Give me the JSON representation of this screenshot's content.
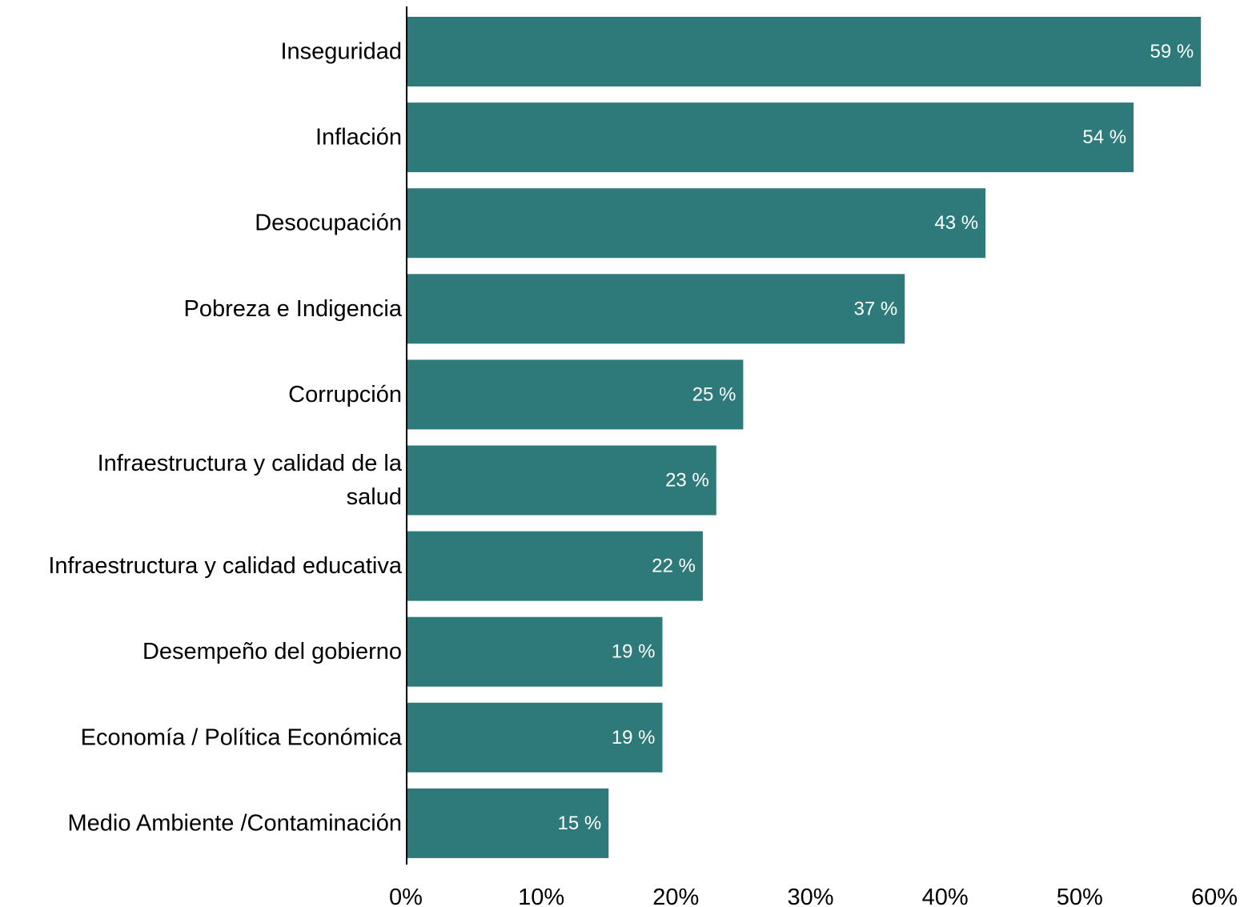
{
  "chart_data": {
    "type": "bar",
    "orientation": "horizontal",
    "title": "",
    "xlabel": "",
    "ylabel": "",
    "categories": [
      [
        "Inseguridad"
      ],
      [
        "Inflación"
      ],
      [
        "Desocupación"
      ],
      [
        "Pobreza e Indigencia"
      ],
      [
        "Corrupción"
      ],
      [
        "Infraestructura y calidad de la",
        "salud"
      ],
      [
        "Infraestructura y calidad educativa"
      ],
      [
        "Desempeño del gobierno"
      ],
      [
        "Economía / Política Económica"
      ],
      [
        "Medio Ambiente /Contaminación"
      ]
    ],
    "values": [
      59,
      54,
      43,
      37,
      25,
      23,
      22,
      19,
      19,
      15
    ],
    "value_labels": [
      "59 %",
      "54 %",
      "43 %",
      "37 %",
      "25 %",
      "23 %",
      "22 %",
      "19 %",
      "19 %",
      "15 %"
    ],
    "xlim": [
      0,
      60
    ],
    "xticks": [
      0,
      10,
      20,
      30,
      40,
      50,
      60
    ],
    "xtick_labels": [
      "0%",
      "10%",
      "20%",
      "30%",
      "40%",
      "50%",
      "60%"
    ],
    "grid": false,
    "legend": "none",
    "bar_color": "#2e7a7a",
    "value_label_color": "#ffffff"
  }
}
